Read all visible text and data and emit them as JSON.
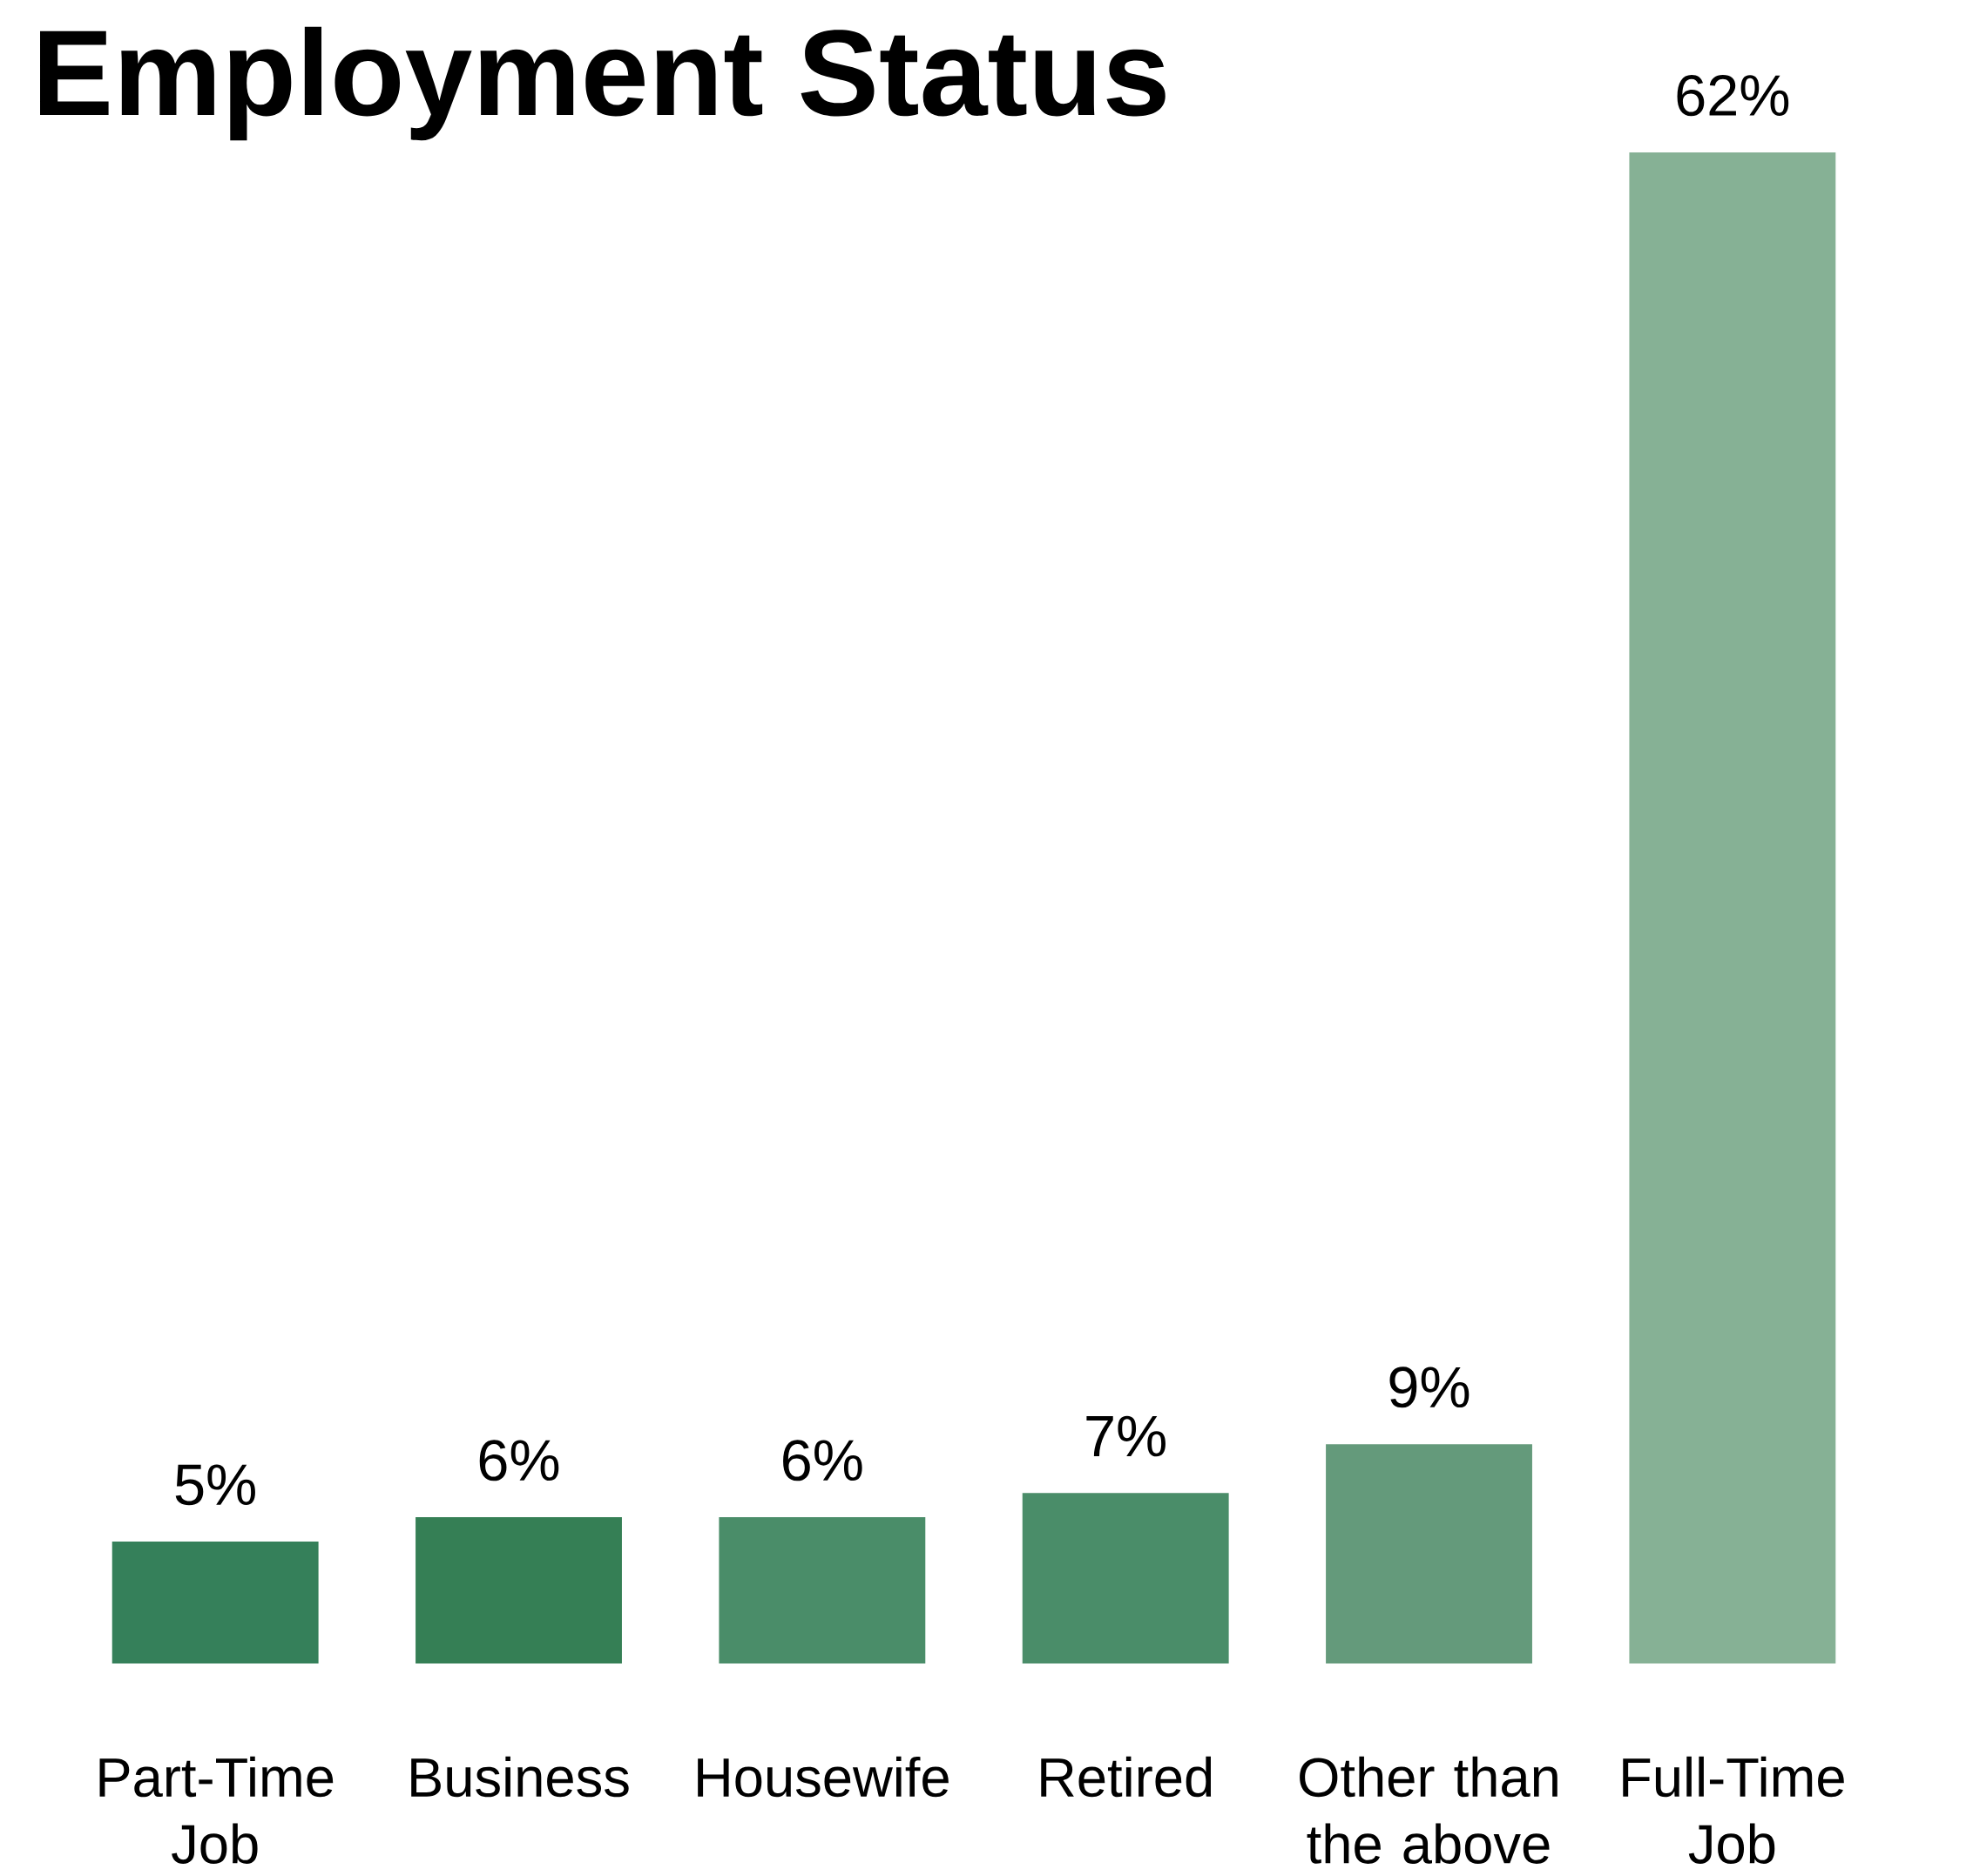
{
  "chart_data": {
    "type": "bar",
    "title": "Employment Status",
    "categories": [
      "Part-Time Job",
      "Business",
      "Housewife",
      "Retired",
      "Other than the above",
      "Full-Time Job"
    ],
    "values": [
      5,
      6,
      6,
      7,
      9,
      62
    ],
    "value_labels": [
      "5%",
      "6%",
      "6%",
      "7%",
      "9%",
      "62%"
    ],
    "colors": [
      "#35805a",
      "#357f55",
      "#4a8d69",
      "#4a8d69",
      "#649a7b",
      "#86b195"
    ]
  }
}
